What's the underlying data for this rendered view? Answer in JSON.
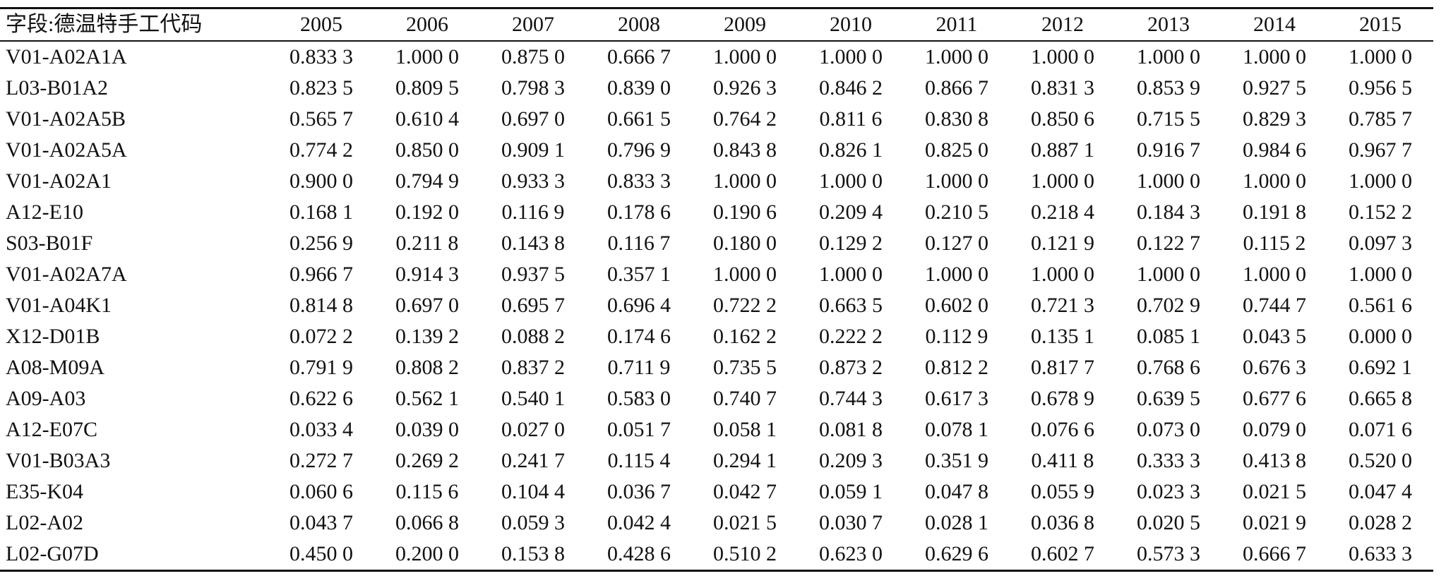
{
  "table": {
    "header_label": "字段:德温特手工代码",
    "years": [
      "2005",
      "2006",
      "2007",
      "2008",
      "2009",
      "2010",
      "2011",
      "2012",
      "2013",
      "2014",
      "2015"
    ],
    "rows": [
      {
        "code": "V01-A02A1A",
        "values": [
          "0.833 3",
          "1.000 0",
          "0.875 0",
          "0.666 7",
          "1.000 0",
          "1.000 0",
          "1.000 0",
          "1.000 0",
          "1.000 0",
          "1.000 0",
          "1.000 0"
        ]
      },
      {
        "code": "L03-B01A2",
        "values": [
          "0.823 5",
          "0.809 5",
          "0.798 3",
          "0.839 0",
          "0.926 3",
          "0.846 2",
          "0.866 7",
          "0.831 3",
          "0.853 9",
          "0.927 5",
          "0.956 5"
        ]
      },
      {
        "code": "V01-A02A5B",
        "values": [
          "0.565 7",
          "0.610 4",
          "0.697 0",
          "0.661 5",
          "0.764 2",
          "0.811 6",
          "0.830 8",
          "0.850 6",
          "0.715 5",
          "0.829 3",
          "0.785 7"
        ]
      },
      {
        "code": "V01-A02A5A",
        "values": [
          "0.774 2",
          "0.850 0",
          "0.909 1",
          "0.796 9",
          "0.843 8",
          "0.826 1",
          "0.825 0",
          "0.887 1",
          "0.916 7",
          "0.984 6",
          "0.967 7"
        ]
      },
      {
        "code": "V01-A02A1",
        "values": [
          "0.900 0",
          "0.794 9",
          "0.933 3",
          "0.833 3",
          "1.000 0",
          "1.000 0",
          "1.000 0",
          "1.000 0",
          "1.000 0",
          "1.000 0",
          "1.000 0"
        ]
      },
      {
        "code": "A12-E10",
        "values": [
          "0.168 1",
          "0.192 0",
          "0.116 9",
          "0.178 6",
          "0.190 6",
          "0.209 4",
          "0.210 5",
          "0.218 4",
          "0.184 3",
          "0.191 8",
          "0.152 2"
        ]
      },
      {
        "code": "S03-B01F",
        "values": [
          "0.256 9",
          "0.211 8",
          "0.143 8",
          "0.116 7",
          "0.180 0",
          "0.129 2",
          "0.127 0",
          "0.121 9",
          "0.122 7",
          "0.115 2",
          "0.097 3"
        ]
      },
      {
        "code": "V01-A02A7A",
        "values": [
          "0.966 7",
          "0.914 3",
          "0.937 5",
          "0.357 1",
          "1.000 0",
          "1.000 0",
          "1.000 0",
          "1.000 0",
          "1.000 0",
          "1.000 0",
          "1.000 0"
        ]
      },
      {
        "code": "V01-A04K1",
        "values": [
          "0.814 8",
          "0.697 0",
          "0.695 7",
          "0.696 4",
          "0.722 2",
          "0.663 5",
          "0.602 0",
          "0.721 3",
          "0.702 9",
          "0.744 7",
          "0.561 6"
        ]
      },
      {
        "code": "X12-D01B",
        "values": [
          "0.072 2",
          "0.139 2",
          "0.088 2",
          "0.174 6",
          "0.162 2",
          "0.222 2",
          "0.112 9",
          "0.135 1",
          "0.085 1",
          "0.043 5",
          "0.000 0"
        ]
      },
      {
        "code": "A08-M09A",
        "values": [
          "0.791 9",
          "0.808 2",
          "0.837 2",
          "0.711 9",
          "0.735 5",
          "0.873 2",
          "0.812 2",
          "0.817 7",
          "0.768 6",
          "0.676 3",
          "0.692 1"
        ]
      },
      {
        "code": "A09-A03",
        "values": [
          "0.622 6",
          "0.562 1",
          "0.540 1",
          "0.583 0",
          "0.740 7",
          "0.744 3",
          "0.617 3",
          "0.678 9",
          "0.639 5",
          "0.677 6",
          "0.665 8"
        ]
      },
      {
        "code": "A12-E07C",
        "values": [
          "0.033 4",
          "0.039 0",
          "0.027 0",
          "0.051 7",
          "0.058 1",
          "0.081 8",
          "0.078 1",
          "0.076 6",
          "0.073 0",
          "0.079 0",
          "0.071 6"
        ]
      },
      {
        "code": "V01-B03A3",
        "values": [
          "0.272 7",
          "0.269 2",
          "0.241 7",
          "0.115 4",
          "0.294 1",
          "0.209 3",
          "0.351 9",
          "0.411 8",
          "0.333 3",
          "0.413 8",
          "0.520 0"
        ]
      },
      {
        "code": "E35-K04",
        "values": [
          "0.060 6",
          "0.115 6",
          "0.104 4",
          "0.036 7",
          "0.042 7",
          "0.059 1",
          "0.047 8",
          "0.055 9",
          "0.023 3",
          "0.021 5",
          "0.047 4"
        ]
      },
      {
        "code": "L02-A02",
        "values": [
          "0.043 7",
          "0.066 8",
          "0.059 3",
          "0.042 4",
          "0.021 5",
          "0.030 7",
          "0.028 1",
          "0.036 8",
          "0.020 5",
          "0.021 9",
          "0.028 2"
        ]
      },
      {
        "code": "L02-G07D",
        "values": [
          "0.450 0",
          "0.200 0",
          "0.153 8",
          "0.428 6",
          "0.510 2",
          "0.623 0",
          "0.629 6",
          "0.602 7",
          "0.573 3",
          "0.666 7",
          "0.633 3"
        ]
      }
    ]
  }
}
